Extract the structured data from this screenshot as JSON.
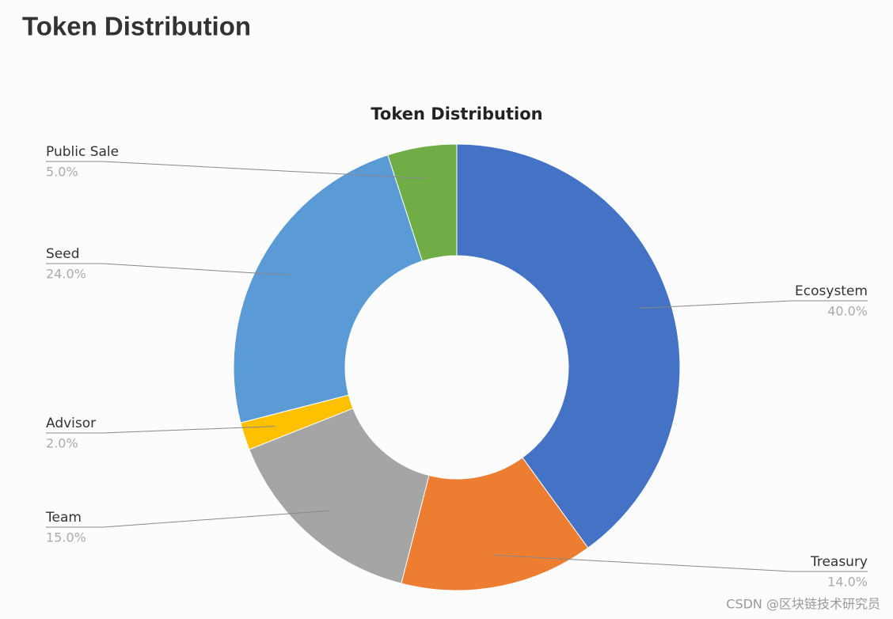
{
  "heading": "Token Distribution",
  "chart_data": {
    "type": "donut",
    "title": "Token Distribution",
    "categories": [
      "Ecosystem",
      "Treasury",
      "Team",
      "Advisor",
      "Seed",
      "Public Sale"
    ],
    "values": [
      40,
      14,
      15,
      2,
      24,
      5
    ],
    "value_labels": [
      "40.0%",
      "14.0%",
      "15.0%",
      "2.0%",
      "24.0%",
      "5.0%"
    ],
    "colors": [
      "#4472c4",
      "#ed7d31",
      "#a5a5a5",
      "#ffc000",
      "#5b9bd5",
      "#70ad47"
    ]
  },
  "watermark": "CSDN @区块链技术研究员"
}
